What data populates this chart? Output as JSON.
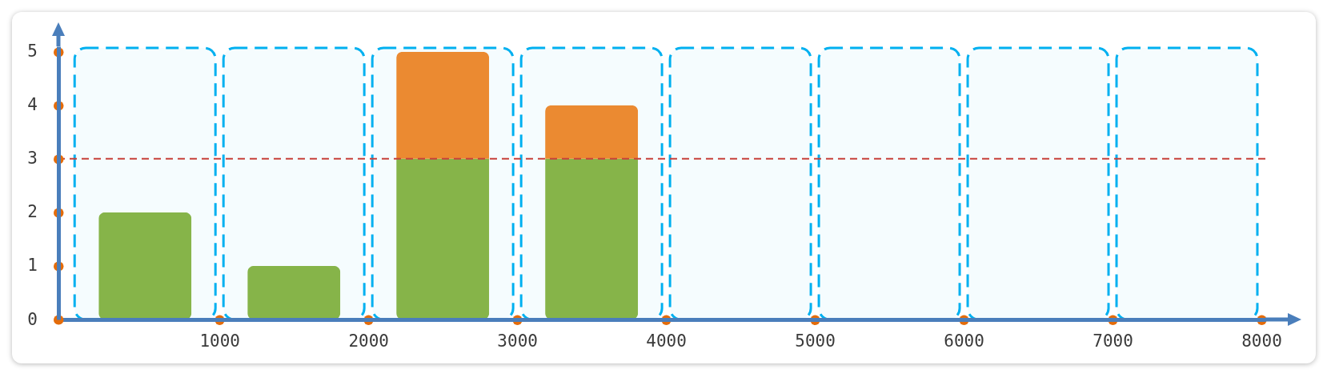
{
  "chart_data": {
    "type": "bar",
    "x": [
      500,
      1500,
      2500,
      3500,
      4500,
      5500,
      6500,
      7500
    ],
    "stacked": true,
    "series": [
      {
        "color": "#8cb543",
        "values": [
          2,
          1,
          3,
          3,
          0,
          0,
          0,
          0
        ]
      },
      {
        "color": "#f5892a",
        "values": [
          0,
          0,
          2,
          1,
          0,
          0,
          0,
          0
        ]
      }
    ],
    "xlim": [
      -55,
      8000
    ],
    "xticks": [
      1000,
      2000,
      3000,
      4000,
      5000,
      6000,
      7000,
      8000
    ],
    "ylim": [
      0,
      5.1
    ],
    "yticks": [
      0,
      1,
      2,
      3,
      4,
      5
    ],
    "ref_lines": [
      {
        "axis": "y",
        "value": 3,
        "color": "#c8403a",
        "line_style": "dashed"
      }
    ],
    "bands": [
      {
        "axis": "x",
        "from": 0,
        "to": 1000,
        "color": "#00b0f0"
      },
      {
        "axis": "x",
        "from": 1000,
        "to": 2000,
        "color": "#00b0f0"
      },
      {
        "axis": "x",
        "from": 2000,
        "to": 3000,
        "color": "#00b0f0"
      },
      {
        "axis": "x",
        "from": 3000,
        "to": 4000,
        "color": "#00b0f0"
      },
      {
        "axis": "x",
        "from": 4000,
        "to": 5000,
        "color": "#00b0f0"
      },
      {
        "axis": "x",
        "from": 5000,
        "to": 6000,
        "color": "#00b0f0"
      },
      {
        "axis": "x",
        "from": 6000,
        "to": 7000,
        "color": "#00b0f0"
      },
      {
        "axis": "x",
        "from": 7000,
        "to": 8000,
        "color": "#00b0f0"
      }
    ]
  }
}
